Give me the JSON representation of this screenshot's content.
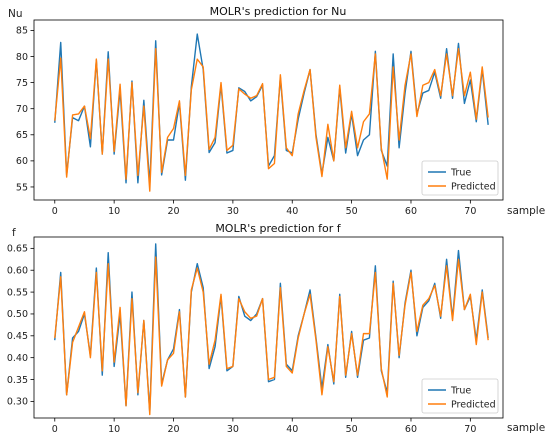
{
  "colors": {
    "true": "#1f77b4",
    "predicted": "#ff7f0e"
  },
  "chart_data": [
    {
      "type": "line",
      "title": "MOLR's prediction for Nu",
      "ylabel": "Nu",
      "xlabel": "sample",
      "xlim": [
        -3.5,
        75.5
      ],
      "ylim": [
        52.5,
        87
      ],
      "xticks": [
        0,
        10,
        20,
        30,
        40,
        50,
        60,
        70
      ],
      "yticks": [
        55,
        60,
        65,
        70,
        75,
        80,
        85
      ],
      "legend": "lower-right",
      "series": [
        {
          "name": "True",
          "color": "#1f77b4",
          "values": [
            67.3,
            82.7,
            57.3,
            68.3,
            67.7,
            70.5,
            62.7,
            79.3,
            61.3,
            80.9,
            61.3,
            73.6,
            55.8,
            75.3,
            55.8,
            71.6,
            55.5,
            83.0,
            57.3,
            64.0,
            64.0,
            71.1,
            56.3,
            74.2,
            84.3,
            77.5,
            61.6,
            63.5,
            74.5,
            61.5,
            62.0,
            74.0,
            73.3,
            71.5,
            72.3,
            74.5,
            59.0,
            61.0,
            76.0,
            62.0,
            61.5,
            68.0,
            73.0,
            77.5,
            65.0,
            57.5,
            64.5,
            60.0,
            74.0,
            61.5,
            69.0,
            61.0,
            64.0,
            65.0,
            81.0,
            62.0,
            59.0,
            80.5,
            62.5,
            73.0,
            81.0,
            69.0,
            73.0,
            73.5,
            77.0,
            72.0,
            81.5,
            72.0,
            82.5,
            71.0,
            75.5,
            67.5,
            77.5,
            66.9
          ]
        },
        {
          "name": "Predicted",
          "color": "#ff7f0e",
          "values": [
            67.7,
            79.7,
            56.9,
            68.8,
            69.0,
            70.5,
            64.3,
            79.5,
            61.3,
            79.5,
            61.8,
            74.7,
            56.5,
            75.0,
            57.2,
            70.5,
            54.2,
            81.5,
            57.8,
            64.5,
            66.2,
            71.5,
            57.2,
            73.6,
            79.5,
            78.0,
            62.2,
            64.5,
            75.0,
            62.0,
            63.0,
            73.8,
            72.8,
            72.0,
            72.5,
            74.8,
            58.5,
            59.5,
            76.5,
            62.5,
            61.0,
            69.0,
            73.5,
            77.5,
            64.5,
            57.0,
            67.0,
            60.0,
            74.5,
            62.5,
            69.5,
            62.5,
            67.5,
            69.0,
            80.5,
            62.5,
            56.5,
            78.0,
            64.0,
            74.5,
            80.5,
            68.5,
            74.5,
            75.0,
            77.5,
            72.5,
            80.5,
            72.5,
            81.5,
            72.5,
            77.0,
            68.0,
            78.0,
            68.3
          ]
        }
      ]
    },
    {
      "type": "line",
      "title": "MOLR's prediction for f",
      "ylabel": "f",
      "xlabel": "sample",
      "xlim": [
        -3.5,
        75.5
      ],
      "ylim": [
        0.262,
        0.676
      ],
      "xticks": [
        0,
        10,
        20,
        30,
        40,
        50,
        60,
        70
      ],
      "yticks": [
        0.3,
        0.35,
        0.4,
        0.45,
        0.5,
        0.55,
        0.6,
        0.65
      ],
      "ytick_labels": [
        "0.30",
        "0.35",
        "0.40",
        "0.45",
        "0.50",
        "0.55",
        "0.60",
        "0.65"
      ],
      "legend": "lower-right",
      "series": [
        {
          "name": "True",
          "color": "#1f77b4",
          "values": [
            0.44,
            0.595,
            0.315,
            0.445,
            0.46,
            0.5,
            0.405,
            0.605,
            0.36,
            0.64,
            0.38,
            0.5,
            0.29,
            0.55,
            0.315,
            0.485,
            0.275,
            0.66,
            0.34,
            0.395,
            0.42,
            0.51,
            0.31,
            0.55,
            0.615,
            0.56,
            0.375,
            0.425,
            0.54,
            0.37,
            0.38,
            0.54,
            0.495,
            0.485,
            0.5,
            0.535,
            0.345,
            0.35,
            0.57,
            0.385,
            0.37,
            0.45,
            0.5,
            0.555,
            0.445,
            0.33,
            0.43,
            0.34,
            0.545,
            0.355,
            0.46,
            0.355,
            0.44,
            0.445,
            0.61,
            0.37,
            0.32,
            0.575,
            0.4,
            0.525,
            0.6,
            0.45,
            0.515,
            0.53,
            0.57,
            0.49,
            0.625,
            0.49,
            0.645,
            0.51,
            0.54,
            0.44,
            0.555,
            0.445
          ]
        },
        {
          "name": "Predicted",
          "color": "#ff7f0e",
          "values": [
            0.445,
            0.585,
            0.315,
            0.435,
            0.47,
            0.505,
            0.4,
            0.595,
            0.37,
            0.615,
            0.39,
            0.515,
            0.29,
            0.535,
            0.32,
            0.485,
            0.27,
            0.63,
            0.335,
            0.395,
            0.41,
            0.505,
            0.31,
            0.555,
            0.605,
            0.55,
            0.385,
            0.44,
            0.545,
            0.375,
            0.38,
            0.535,
            0.505,
            0.49,
            0.495,
            0.535,
            0.35,
            0.355,
            0.56,
            0.38,
            0.365,
            0.445,
            0.5,
            0.545,
            0.44,
            0.315,
            0.425,
            0.345,
            0.54,
            0.36,
            0.455,
            0.36,
            0.455,
            0.455,
            0.595,
            0.375,
            0.31,
            0.57,
            0.405,
            0.52,
            0.595,
            0.46,
            0.52,
            0.535,
            0.565,
            0.495,
            0.61,
            0.485,
            0.625,
            0.51,
            0.545,
            0.43,
            0.55,
            0.44
          ]
        }
      ]
    }
  ]
}
